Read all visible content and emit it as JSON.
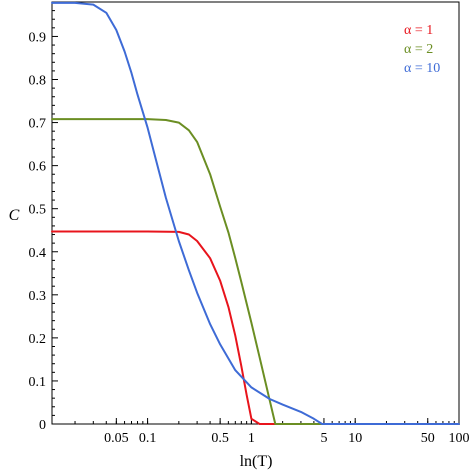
{
  "chart_data": {
    "type": "line",
    "title": "",
    "xlabel": "ln(T)",
    "ylabel": "C",
    "x_scale": "log",
    "xlim": [
      0.012,
      100
    ],
    "ylim": [
      0,
      0.98
    ],
    "grid": false,
    "legend_position": "top-right",
    "x_ticks": [
      {
        "value": 0.05,
        "label": "0.05"
      },
      {
        "value": 0.1,
        "label": "0.1"
      },
      {
        "value": 0.5,
        "label": "0.5"
      },
      {
        "value": 1,
        "label": "1"
      },
      {
        "value": 5,
        "label": "5"
      },
      {
        "value": 10,
        "label": "10"
      },
      {
        "value": 50,
        "label": "50"
      },
      {
        "value": 100,
        "label": "100"
      }
    ],
    "y_ticks": [
      {
        "value": 0,
        "label": "0"
      },
      {
        "value": 0.1,
        "label": "0.1"
      },
      {
        "value": 0.2,
        "label": "0.2"
      },
      {
        "value": 0.3,
        "label": "0.3"
      },
      {
        "value": 0.4,
        "label": "0.4"
      },
      {
        "value": 0.5,
        "label": "0.5"
      },
      {
        "value": 0.6,
        "label": "0.6"
      },
      {
        "value": 0.7,
        "label": "0.7"
      },
      {
        "value": 0.8,
        "label": "0.8"
      },
      {
        "value": 0.9,
        "label": "0.9"
      }
    ],
    "series": [
      {
        "name": "α = 1",
        "color": "#e8141c",
        "x": [
          0.012,
          0.1,
          0.2,
          0.25,
          0.3,
          0.4,
          0.5,
          0.6,
          0.7,
          0.8,
          0.9,
          1.0,
          1.2,
          1.5,
          5,
          10,
          100
        ],
        "y": [
          0.447,
          0.447,
          0.446,
          0.44,
          0.425,
          0.385,
          0.333,
          0.272,
          0.205,
          0.135,
          0.068,
          0.012,
          0.0,
          0.0,
          0.0,
          0.0,
          0.0
        ]
      },
      {
        "name": "α = 2",
        "color": "#6b8e23",
        "x": [
          0.012,
          0.1,
          0.15,
          0.2,
          0.25,
          0.3,
          0.4,
          0.5,
          0.6,
          0.7,
          0.8,
          1.0,
          1.2,
          1.5,
          1.7,
          5,
          10,
          100
        ],
        "y": [
          0.708,
          0.708,
          0.706,
          0.7,
          0.682,
          0.655,
          0.58,
          0.505,
          0.445,
          0.385,
          0.33,
          0.235,
          0.155,
          0.055,
          0.0,
          0.0,
          0.0,
          0.0
        ]
      },
      {
        "name": "α = 10",
        "color": "#3e6bd6",
        "x": [
          0.012,
          0.02,
          0.03,
          0.04,
          0.05,
          0.06,
          0.07,
          0.08,
          0.1,
          0.12,
          0.15,
          0.2,
          0.25,
          0.3,
          0.4,
          0.5,
          0.7,
          1.0,
          1.5,
          2.0,
          3.0,
          4.0,
          4.8,
          10,
          100
        ],
        "y": [
          0.978,
          0.978,
          0.974,
          0.955,
          0.915,
          0.865,
          0.815,
          0.765,
          0.688,
          0.615,
          0.525,
          0.425,
          0.357,
          0.305,
          0.232,
          0.185,
          0.125,
          0.085,
          0.058,
          0.045,
          0.028,
          0.012,
          0.0,
          0.0,
          0.0
        ]
      }
    ]
  }
}
